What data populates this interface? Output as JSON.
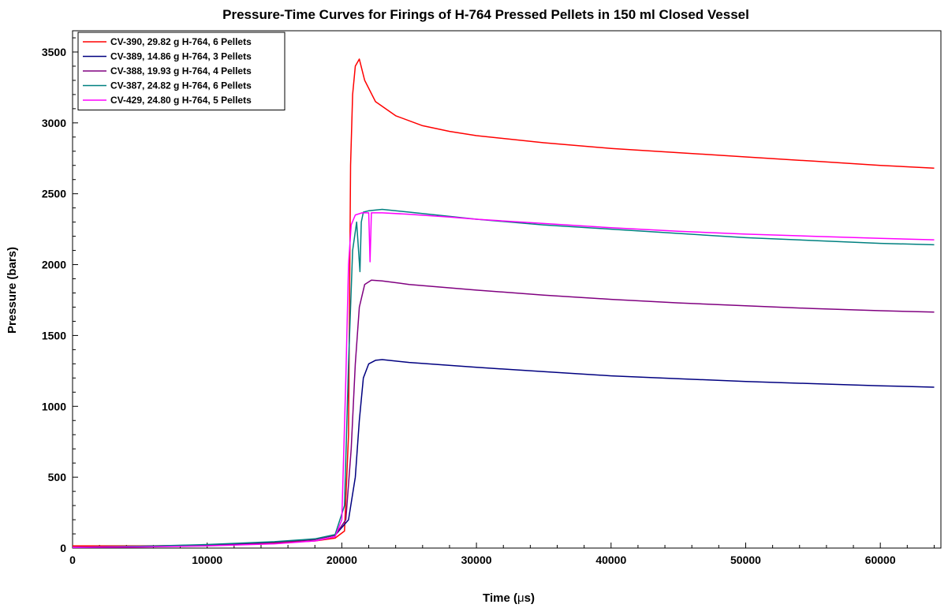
{
  "chart_data": {
    "type": "line",
    "title": "Pressure-Time Curves for Firings of H-764 Pressed Pellets in 150 ml Closed Vessel",
    "xlabel_main": "Time (",
    "xlabel_mu": "μ",
    "xlabel_end": "s)",
    "ylabel": "Pressure (bars)",
    "xlim": [
      0,
      64500
    ],
    "ylim": [
      0,
      3650
    ],
    "x_ticks": [
      0,
      10000,
      20000,
      30000,
      40000,
      50000,
      60000
    ],
    "x_tick_labels": [
      "0",
      "10000",
      "20000",
      "30000",
      "40000",
      "50000",
      "60000"
    ],
    "y_ticks": [
      0,
      500,
      1000,
      1500,
      2000,
      2500,
      3000,
      3500
    ],
    "y_tick_labels": [
      "0",
      "500",
      "1000",
      "1500",
      "2000",
      "2500",
      "3000",
      "3500"
    ],
    "grid": false,
    "legend_position": "top-left",
    "series": [
      {
        "name": "CV-390, 29.82 g H-764, 6 Pellets",
        "color": "#ff0000",
        "x": [
          0,
          5000,
          10000,
          15000,
          18000,
          19500,
          20200,
          20500,
          20650,
          20800,
          21000,
          21300,
          21700,
          22500,
          24000,
          26000,
          28000,
          30000,
          35000,
          40000,
          45000,
          50000,
          55000,
          60000,
          64000
        ],
        "y": [
          15,
          15,
          20,
          35,
          50,
          70,
          120,
          800,
          2700,
          3200,
          3400,
          3450,
          3300,
          3150,
          3050,
          2980,
          2940,
          2910,
          2860,
          2820,
          2790,
          2760,
          2730,
          2700,
          2680
        ]
      },
      {
        "name": "CV-389, 14.86 g H-764, 3 Pellets",
        "color": "#000080",
        "x": [
          0,
          5000,
          10000,
          15000,
          18000,
          19500,
          20500,
          21000,
          21300,
          21600,
          22000,
          22500,
          23000,
          25000,
          30000,
          35000,
          40000,
          45000,
          50000,
          55000,
          60000,
          64000
        ],
        "y": [
          5,
          10,
          20,
          40,
          60,
          90,
          200,
          500,
          900,
          1200,
          1300,
          1325,
          1330,
          1310,
          1275,
          1245,
          1215,
          1195,
          1175,
          1160,
          1145,
          1135
        ]
      },
      {
        "name": "CV-388, 19.93 g H-764, 4 Pellets",
        "color": "#800080",
        "x": [
          0,
          5000,
          10000,
          15000,
          18000,
          19500,
          20300,
          20700,
          21000,
          21300,
          21700,
          22200,
          23000,
          25000,
          30000,
          35000,
          40000,
          45000,
          50000,
          55000,
          60000,
          64000
        ],
        "y": [
          5,
          12,
          22,
          42,
          60,
          90,
          200,
          700,
          1300,
          1700,
          1860,
          1890,
          1885,
          1860,
          1820,
          1785,
          1755,
          1730,
          1710,
          1690,
          1675,
          1665
        ]
      },
      {
        "name": "CV-387, 24.82 g H-764, 6 Pellets",
        "color": "#008080",
        "x": [
          0,
          5000,
          10000,
          15000,
          18000,
          19500,
          20200,
          20500,
          20800,
          21100,
          21350,
          21450,
          21600,
          22000,
          23000,
          25000,
          28000,
          30000,
          35000,
          40000,
          45000,
          50000,
          55000,
          60000,
          64000
        ],
        "y": [
          5,
          12,
          25,
          45,
          65,
          95,
          300,
          1300,
          2100,
          2300,
          1950,
          2300,
          2370,
          2380,
          2390,
          2370,
          2340,
          2320,
          2280,
          2250,
          2220,
          2190,
          2170,
          2150,
          2140
        ]
      },
      {
        "name": "CV-429, 24.80 g H-764, 5 Pellets",
        "color": "#ff00ff",
        "x": [
          0,
          5000,
          10000,
          15000,
          18000,
          19500,
          20000,
          20300,
          20500,
          20700,
          21000,
          21500,
          22000,
          22100,
          22200,
          22500,
          23000,
          25000,
          28000,
          30000,
          35000,
          40000,
          45000,
          50000,
          55000,
          60000,
          64000
        ],
        "y": [
          5,
          8,
          15,
          30,
          50,
          80,
          200,
          1200,
          2000,
          2280,
          2350,
          2365,
          2365,
          2020,
          2365,
          2365,
          2365,
          2355,
          2335,
          2320,
          2290,
          2260,
          2235,
          2215,
          2200,
          2185,
          2175
        ]
      }
    ]
  }
}
